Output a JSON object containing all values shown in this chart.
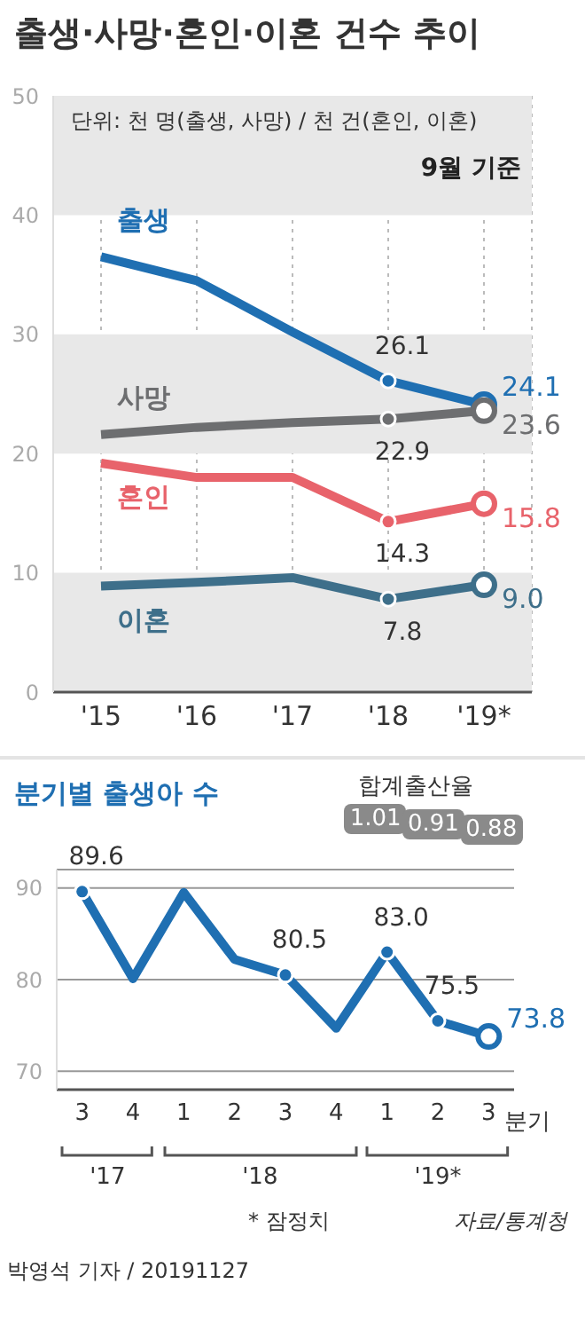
{
  "chart_data": [
    {
      "type": "line",
      "title": "출생·사망·혼인·이혼 건수 추이",
      "subtitle": "단위: 천 명(출생, 사망) / 천 건(혼인, 이혼)",
      "annotations": [
        "9월 기준"
      ],
      "categories": [
        "'15",
        "'16",
        "'17",
        "'18",
        "'19*"
      ],
      "series": [
        {
          "name": "출생",
          "color": "#1f6fb2",
          "values": [
            36.5,
            34.5,
            30.2,
            26.1,
            24.1
          ],
          "value_labels": [
            null,
            null,
            null,
            "26.1",
            "24.1"
          ]
        },
        {
          "name": "사망",
          "color": "#6d6e70",
          "values": [
            21.6,
            22.2,
            22.6,
            22.9,
            23.6
          ],
          "value_labels": [
            null,
            null,
            null,
            "22.9",
            "23.6"
          ]
        },
        {
          "name": "혼인",
          "color": "#e8636b",
          "values": [
            19.2,
            18.0,
            18.0,
            14.3,
            15.8
          ],
          "value_labels": [
            null,
            null,
            null,
            "14.3",
            "15.8"
          ]
        },
        {
          "name": "이혼",
          "color": "#3e6f8a",
          "values": [
            8.9,
            9.2,
            9.6,
            7.8,
            9.0
          ],
          "value_labels": [
            null,
            null,
            null,
            "7.8",
            "9.0"
          ]
        }
      ],
      "ylim": [
        0,
        50
      ],
      "yticks": [
        0,
        10,
        20,
        30,
        40,
        50
      ],
      "grid": "x",
      "bands": [
        {
          "axis": "y",
          "from": 0,
          "to": 10,
          "color": "#e8e8e8"
        },
        {
          "axis": "y",
          "from": 20,
          "to": 30,
          "color": "#e8e8e8"
        },
        {
          "axis": "y",
          "from": 40,
          "to": 50,
          "color": "#e8e8e8"
        }
      ]
    },
    {
      "type": "line",
      "title": "분기별 출생아 수",
      "xlabel": "분기",
      "annotations": [
        "'17",
        "'18",
        "'19*",
        "합계출산율",
        "1.01",
        "0.91",
        "0.88",
        "* 잠정치",
        "자료/통계청",
        "박영석 기자 / 20191127"
      ],
      "categories": [
        "3",
        "4",
        "1",
        "2",
        "3",
        "4",
        "1",
        "2",
        "3"
      ],
      "series": [
        {
          "color": "#1f6fb2",
          "values": [
            89.6,
            80.1,
            89.5,
            82.2,
            80.5,
            74.7,
            83.0,
            75.5,
            73.8
          ],
          "value_labels": [
            "89.6",
            null,
            null,
            null,
            "80.5",
            null,
            "83.0",
            "75.5",
            "73.8"
          ]
        }
      ],
      "ylim": [
        68,
        92
      ],
      "yticks": [
        70,
        80,
        90
      ],
      "grid": "y"
    }
  ]
}
